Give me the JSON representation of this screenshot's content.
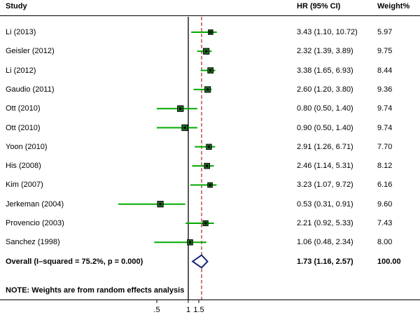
{
  "headers": {
    "study": "Study",
    "hr": "HR (95% CI)",
    "weight": "Weight%"
  },
  "note": "NOTE: Weights are from random effects analysis",
  "colors": {
    "ci_line": "#00aa00",
    "marker": "#000000",
    "diamond": "#1a237e",
    "ref_line": "#000000",
    "overall_line": "#b22222"
  },
  "chart_data": {
    "type": "forest",
    "x_ticks": [
      ".5",
      "1",
      "1.5"
    ],
    "x_tick_values": [
      0.5,
      1,
      1.5
    ],
    "reference_line": 1,
    "overall_line": 1.73,
    "studies": [
      {
        "study": "Li (2013)",
        "hr": 3.43,
        "lower": 1.1,
        "upper": 10.72,
        "hr_text": "3.43 (1.10, 10.72)",
        "weight": "5.97"
      },
      {
        "study": "Geisler (2012)",
        "hr": 2.32,
        "lower": 1.39,
        "upper": 3.89,
        "hr_text": "2.32 (1.39, 3.89)",
        "weight": "9.75"
      },
      {
        "study": "Li (2012)",
        "hr": 3.38,
        "lower": 1.65,
        "upper": 6.93,
        "hr_text": "3.38 (1.65, 6.93)",
        "weight": "8.44"
      },
      {
        "study": "Gaudio (2011)",
        "hr": 2.6,
        "lower": 1.2,
        "upper": 3.8,
        "hr_text": "2.60 (1.20, 3.80)",
        "weight": "9.36"
      },
      {
        "study": "Ott (2010)",
        "hr": 0.8,
        "lower": 0.5,
        "upper": 1.4,
        "hr_text": "0.80 (0.50, 1.40)",
        "weight": "9.74"
      },
      {
        "study": "Ott (2010)",
        "hr": 0.9,
        "lower": 0.5,
        "upper": 1.4,
        "hr_text": "0.90 (0.50, 1.40)",
        "weight": "9.74"
      },
      {
        "study": "Yoon (2010)",
        "hr": 2.91,
        "lower": 1.26,
        "upper": 6.71,
        "hr_text": "2.91 (1.26, 6.71)",
        "weight": "7.70"
      },
      {
        "study": "His (2008)",
        "hr": 2.46,
        "lower": 1.14,
        "upper": 5.31,
        "hr_text": "2.46 (1.14, 5.31)",
        "weight": "8.12"
      },
      {
        "study": "Kim (2007)",
        "hr": 3.23,
        "lower": 1.07,
        "upper": 9.72,
        "hr_text": "3.23 (1.07, 9.72)",
        "weight": "6.16"
      },
      {
        "study": "Jerkeman (2004)",
        "hr": 0.53,
        "lower": 0.31,
        "upper": 0.91,
        "hr_text": "0.53 (0.31, 0.91)",
        "weight": "9.60"
      },
      {
        "study": "Provencio (2003)",
        "hr": 2.21,
        "lower": 0.92,
        "upper": 5.33,
        "hr_text": "2.21 (0.92, 5.33)",
        "weight": "7.43"
      },
      {
        "study": "Sanchez (1998)",
        "hr": 1.06,
        "lower": 0.48,
        "upper": 2.34,
        "hr_text": "1.06 (0.48, 2.34)",
        "weight": "8.00"
      }
    ],
    "overall": {
      "label": "Overall  (I–squared = 75.2%, p = 0.000)",
      "hr": 1.73,
      "lower": 1.16,
      "upper": 2.57,
      "hr_text": "1.73 (1.16, 2.57)",
      "weight": "100.00"
    }
  }
}
